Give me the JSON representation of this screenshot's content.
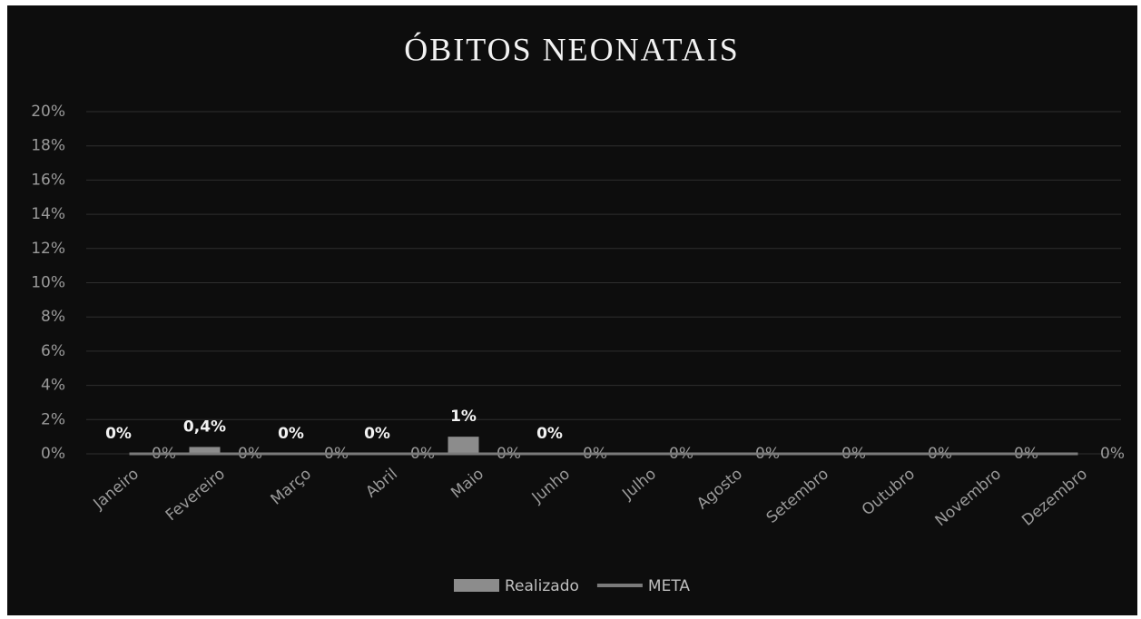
{
  "chart_data": {
    "type": "bar",
    "title": "ÓBITOS NEONATAIS",
    "categories": [
      "Janeiro",
      "Fevereiro",
      "Março",
      "Abril",
      "Maio",
      "Junho",
      "Julho",
      "Agosto",
      "Setembro",
      "Outubro",
      "Novembro",
      "Dezembro"
    ],
    "series": [
      {
        "name": "Realizado",
        "type": "bar",
        "color": "#8c8c8c",
        "values": [
          0,
          0.4,
          0,
          0,
          1,
          0,
          null,
          null,
          null,
          null,
          null,
          null
        ],
        "value_labels": [
          "0%",
          "0,4%",
          "0%",
          "0%",
          "1%",
          "0%",
          null,
          null,
          null,
          null,
          null,
          null
        ]
      },
      {
        "name": "META",
        "type": "line",
        "color": "#7a7a7a",
        "values": [
          0,
          0,
          0,
          0,
          0,
          0,
          0,
          0,
          0,
          0,
          0,
          0
        ],
        "value_labels": [
          "0%",
          "0%",
          "0%",
          "0%",
          "0%",
          "0%",
          "0%",
          "0%",
          "0%",
          "0%",
          "0%",
          "0%"
        ]
      }
    ],
    "ylim": [
      0,
      20
    ],
    "yticks": [
      {
        "value": 0,
        "label": "0%"
      },
      {
        "value": 2,
        "label": "2%"
      },
      {
        "value": 4,
        "label": "4%"
      },
      {
        "value": 6,
        "label": "6%"
      },
      {
        "value": 8,
        "label": "8%"
      },
      {
        "value": 10,
        "label": "10%"
      },
      {
        "value": 12,
        "label": "12%"
      },
      {
        "value": 14,
        "label": "14%"
      },
      {
        "value": 16,
        "label": "16%"
      },
      {
        "value": 18,
        "label": "18%"
      },
      {
        "value": 20,
        "label": "20%"
      }
    ],
    "grid": true,
    "legend": "bottom"
  }
}
